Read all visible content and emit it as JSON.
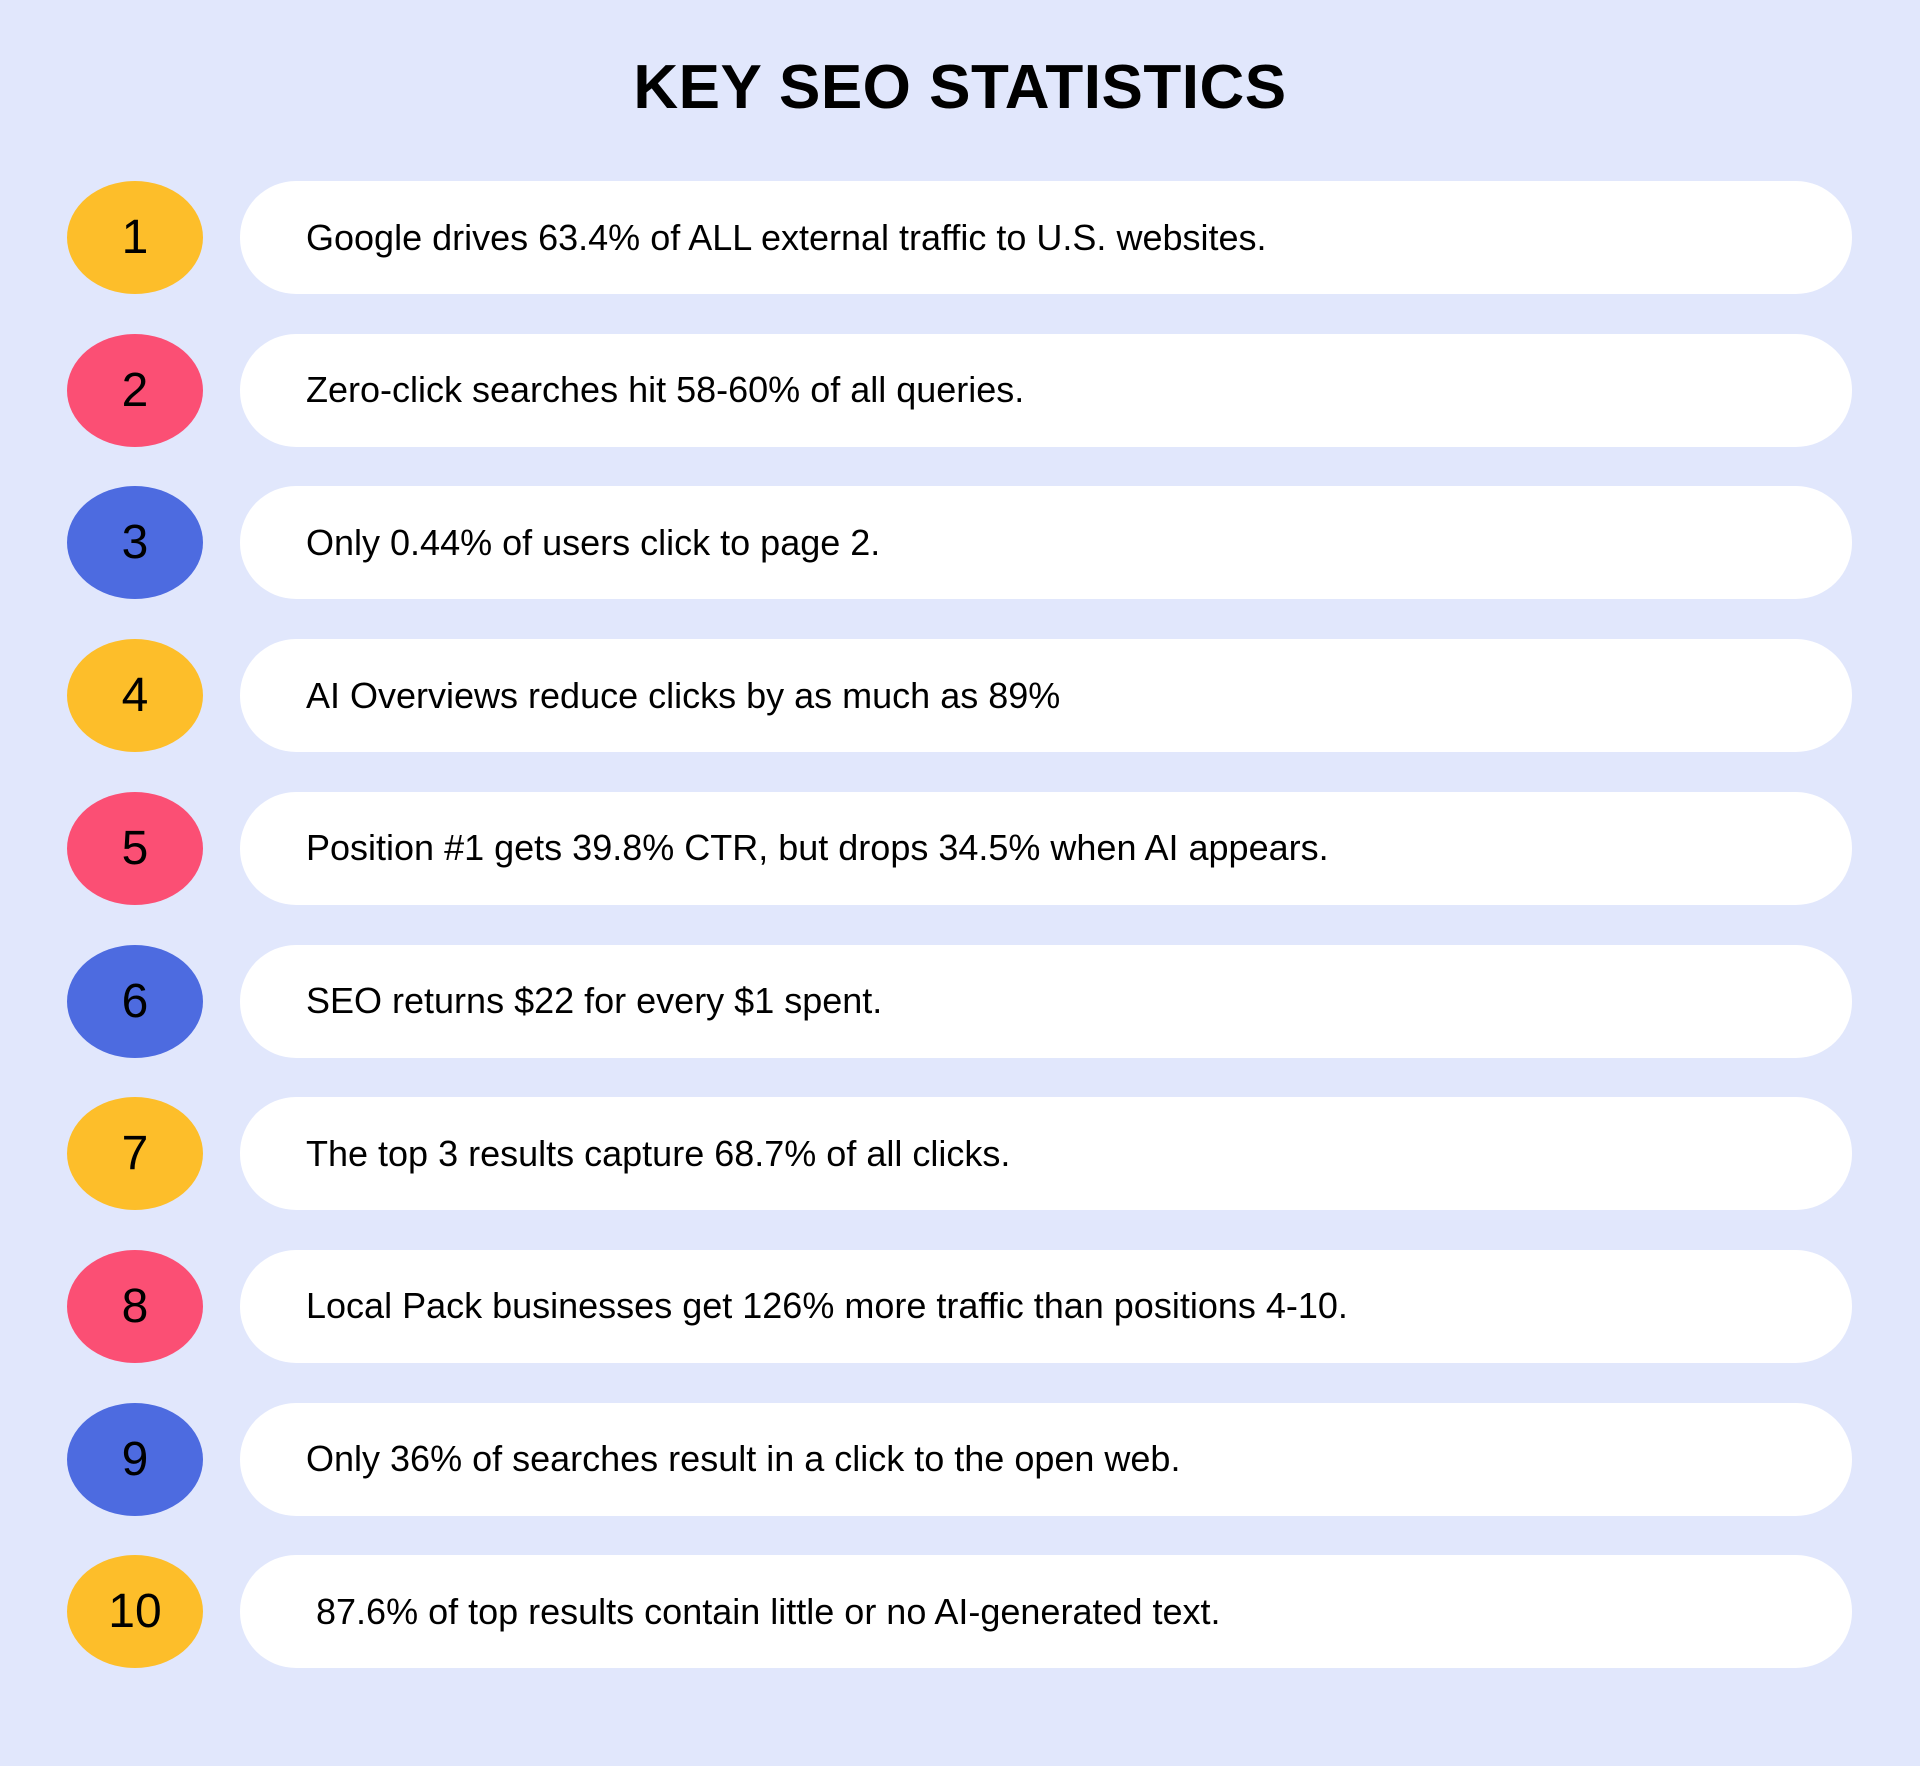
{
  "title": "KEY SEO STATISTICS",
  "colors": {
    "background": "#e1e7fc",
    "yellow": "#fdbe2a",
    "red": "#fb4f74",
    "blue": "#4d6be0"
  },
  "stats": [
    {
      "number": "1",
      "text": "Google drives 63.4% of ALL external traffic to U.S. websites.",
      "color": "#fdbe2a"
    },
    {
      "number": "2",
      "text": "Zero-click searches hit 58-60% of all queries.",
      "color": "#fb4f74"
    },
    {
      "number": "3",
      "text": "Only 0.44% of users click to page 2.",
      "color": "#4d6be0"
    },
    {
      "number": "4",
      "text": "AI Overviews reduce clicks by as much as 89%",
      "color": "#fdbe2a"
    },
    {
      "number": "5",
      "text": "Position #1 gets 39.8% CTR, but drops 34.5% when AI appears.",
      "color": "#fb4f74"
    },
    {
      "number": "6",
      "text": "SEO returns $22 for every $1 spent.",
      "color": "#4d6be0"
    },
    {
      "number": "7",
      "text": "The top 3 results capture 68.7% of all clicks.",
      "color": "#fdbe2a"
    },
    {
      "number": "8",
      "text": "Local Pack businesses get 126% more traffic than positions 4-10.",
      "color": "#fb4f74"
    },
    {
      "number": "9",
      "text": "Only 36% of searches result in a click to the open web.",
      "color": "#4d6be0"
    },
    {
      "number": "10",
      "text": " 87.6% of top results contain little or no AI-generated text.",
      "color": "#fdbe2a"
    }
  ]
}
